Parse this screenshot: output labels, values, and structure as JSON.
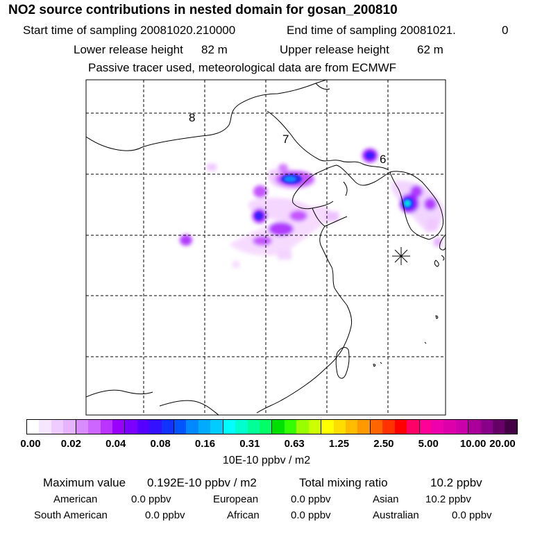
{
  "header": {
    "title": "NO2 source contributions in nested domain for gosan_200810",
    "start_label": "Start time of sampling 20081020.210000",
    "end_label": "End time of sampling 20081021.",
    "end_value": "0",
    "lower_label": "Lower release height",
    "lower_value": "82 m",
    "upper_label": "Upper release height",
    "upper_value": "62 m",
    "note": "Passive tracer used, meteorological data are from ECMWF"
  },
  "map": {
    "region_labels": [
      "8",
      "7",
      "6"
    ],
    "station_marker": "gosan-station"
  },
  "colorbar": {
    "colors": [
      "#ffffff",
      "#f7e6ff",
      "#efccff",
      "#e6b3ff",
      "#d98cff",
      "#cc66ff",
      "#bb33ff",
      "#9900ff",
      "#7a00ff",
      "#5500ff",
      "#3311ff",
      "#1133ff",
      "#0055ff",
      "#0088ff",
      "#00aaff",
      "#00ccff",
      "#00ffff",
      "#00ffcc",
      "#00ff99",
      "#00ff66",
      "#00e000",
      "#33ff00",
      "#99ff00",
      "#ccff00",
      "#ffff00",
      "#ffdd00",
      "#ffbb00",
      "#ff9900",
      "#ff6600",
      "#ff3300",
      "#ff0000",
      "#ff0066",
      "#ff0099",
      "#ee00aa",
      "#dd00aa",
      "#cc00aa",
      "#aa0099",
      "#880088",
      "#660066",
      "#440044"
    ],
    "ticks": [
      "0.00",
      "0.02",
      "0.04",
      "0.08",
      "0.16",
      "0.31",
      "0.63",
      "1.25",
      "2.50",
      "5.00",
      "10.00",
      "20.00"
    ],
    "unit": "10E-10 ppbv / m2"
  },
  "stats": {
    "max_label": "Maximum value",
    "max_value": "0.192E-10 ppbv / m2",
    "total_label": "Total mixing ratio",
    "total_value": "10.2 ppbv",
    "regions": [
      {
        "name": "American",
        "value": "0.0 ppbv"
      },
      {
        "name": "European",
        "value": "0.0 ppbv"
      },
      {
        "name": "Asian",
        "value": "10.2 ppbv"
      },
      {
        "name": "South American",
        "value": "0.0 ppbv"
      },
      {
        "name": "African",
        "value": "0.0 ppbv"
      },
      {
        "name": "Australian",
        "value": "0.0 ppbv"
      }
    ]
  }
}
